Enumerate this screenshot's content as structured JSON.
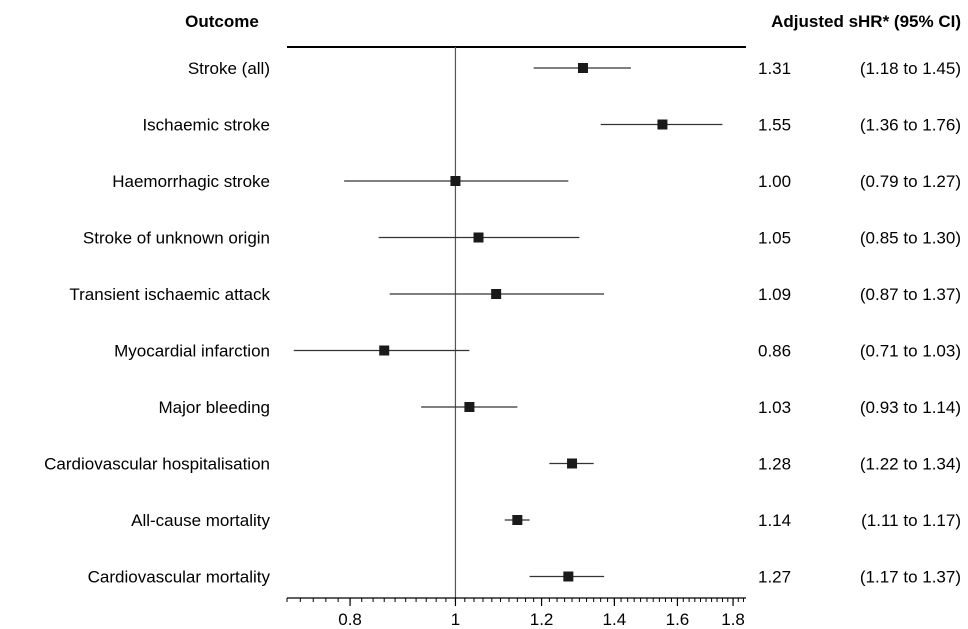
{
  "chart_data": {
    "type": "forest",
    "header_outcome": "Outcome",
    "header_estimate": "Adjusted sHR* (95% CI)",
    "x_scale": "log",
    "xlim": [
      0.7,
      1.85
    ],
    "reference_line": 1,
    "x_ticks_labeled": [
      "0.8",
      "1",
      "1.2",
      "1.4",
      "1.6",
      "1.8"
    ],
    "rows": [
      {
        "label": "Stroke (all)",
        "est": 1.31,
        "lo": 1.18,
        "hi": 1.45,
        "est_text": "1.31",
        "ci_text": "(1.18 to 1.45)"
      },
      {
        "label": "Ischaemic stroke",
        "est": 1.55,
        "lo": 1.36,
        "hi": 1.76,
        "est_text": "1.55",
        "ci_text": "(1.36 to 1.76)"
      },
      {
        "label": "Haemorrhagic stroke",
        "est": 1.0,
        "lo": 0.79,
        "hi": 1.27,
        "est_text": "1.00",
        "ci_text": "(0.79 to 1.27)"
      },
      {
        "label": "Stroke of unknown origin",
        "est": 1.05,
        "lo": 0.85,
        "hi": 1.3,
        "est_text": "1.05",
        "ci_text": "(0.85 to 1.30)"
      },
      {
        "label": "Transient ischaemic attack",
        "est": 1.09,
        "lo": 0.87,
        "hi": 1.37,
        "est_text": "1.09",
        "ci_text": "(0.87 to 1.37)"
      },
      {
        "label": "Myocardial infarction",
        "est": 0.86,
        "lo": 0.71,
        "hi": 1.03,
        "est_text": "0.86",
        "ci_text": "(0.71 to 1.03)"
      },
      {
        "label": "Major bleeding",
        "est": 1.03,
        "lo": 0.93,
        "hi": 1.14,
        "est_text": "1.03",
        "ci_text": "(0.93 to 1.14)"
      },
      {
        "label": "Cardiovascular hospitalisation",
        "est": 1.28,
        "lo": 1.22,
        "hi": 1.34,
        "est_text": "1.28",
        "ci_text": "(1.22 to 1.34)"
      },
      {
        "label": "All-cause mortality",
        "est": 1.14,
        "lo": 1.11,
        "hi": 1.17,
        "est_text": "1.14",
        "ci_text": "(1.11 to 1.17)"
      },
      {
        "label": "Cardiovascular mortality",
        "est": 1.27,
        "lo": 1.17,
        "hi": 1.37,
        "est_text": "1.27",
        "ci_text": "(1.17 to 1.37)"
      }
    ],
    "colors": {
      "marker": "#1a1a1a",
      "line": "#333333",
      "reference": "#555555"
    }
  }
}
